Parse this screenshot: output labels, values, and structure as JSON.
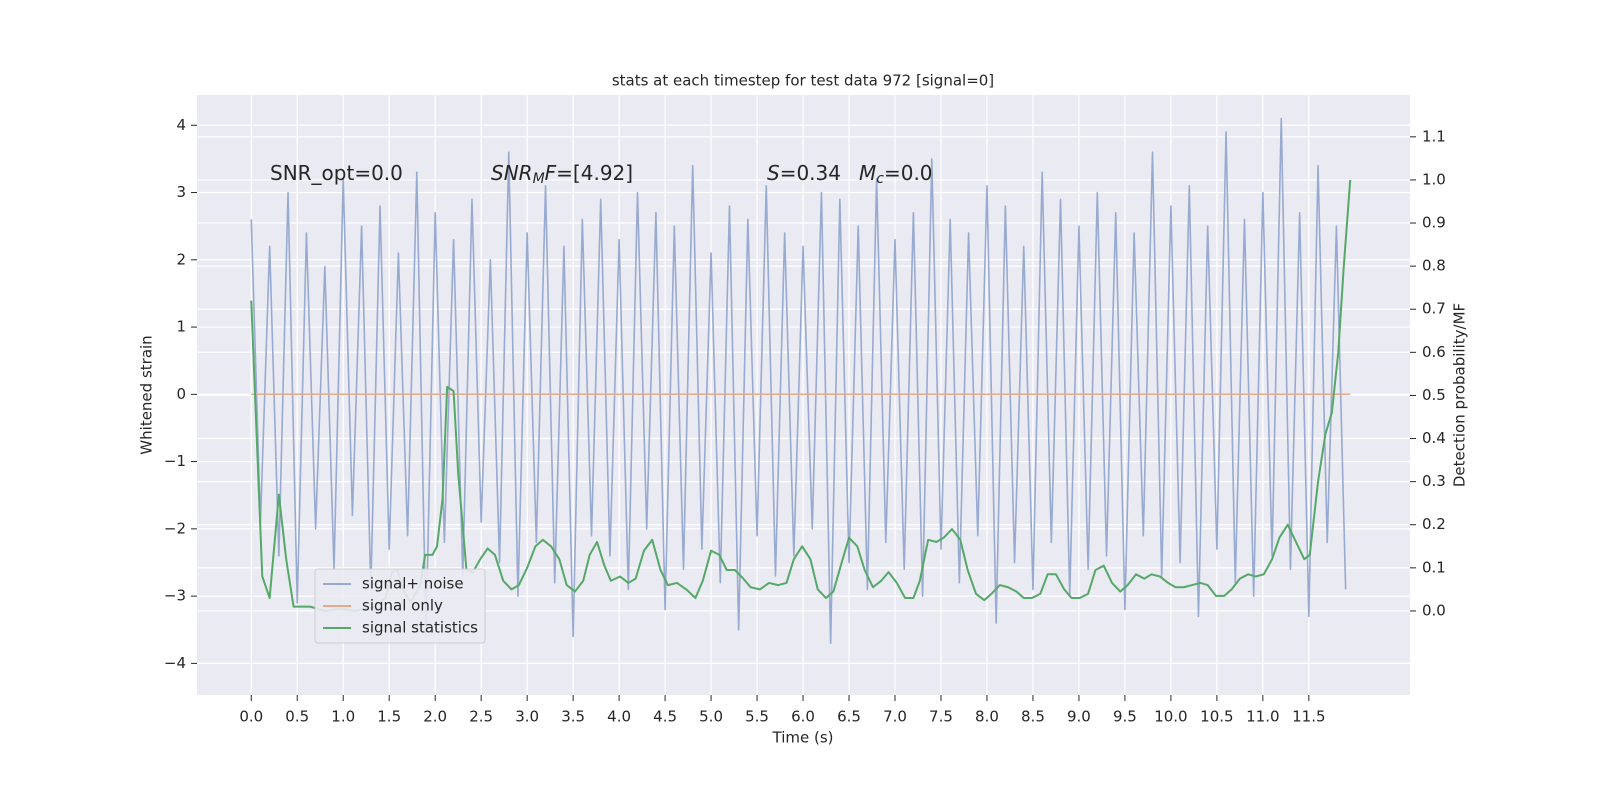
{
  "chart_data": {
    "type": "line",
    "title": "stats at each timestep for test data 972 [signal=0]",
    "xlabel": "Time (s)",
    "ylabel": "Whitened strain",
    "y2label": "Detection probability/MF",
    "annotations": [
      [
        "SNR_opt=0.0"
      ],
      [
        "SNR",
        "M",
        "F",
        "=[4.92]"
      ],
      [
        "S",
        "=0.34"
      ],
      [
        "M",
        "c",
        "=0.0"
      ]
    ],
    "legend": "lower left",
    "grid": true,
    "xlim": [
      -0.59,
      12.6
    ],
    "ylim": [
      -4.47,
      4.45
    ],
    "y2lim": [
      -0.195,
      1.197
    ],
    "xticks": [
      {
        "value": 0,
        "label": "0.0"
      },
      {
        "value": 0.5,
        "label": "0.5"
      },
      {
        "value": 1,
        "label": "1.0"
      },
      {
        "value": 1.5,
        "label": "1.5"
      },
      {
        "value": 2,
        "label": "2.0"
      },
      {
        "value": 2.5,
        "label": "2.5"
      },
      {
        "value": 3,
        "label": "3.0"
      },
      {
        "value": 3.5,
        "label": "3.5"
      },
      {
        "value": 4,
        "label": "4.0"
      },
      {
        "value": 4.5,
        "label": "4.5"
      },
      {
        "value": 5,
        "label": "5.0"
      },
      {
        "value": 5.5,
        "label": "5.5"
      },
      {
        "value": 6,
        "label": "6.0"
      },
      {
        "value": 6.5,
        "label": "6.5"
      },
      {
        "value": 7,
        "label": "7.0"
      },
      {
        "value": 7.5,
        "label": "7.5"
      },
      {
        "value": 8,
        "label": "8.0"
      },
      {
        "value": 8.5,
        "label": "8.5"
      },
      {
        "value": 9,
        "label": "9.0"
      },
      {
        "value": 9.5,
        "label": "9.5"
      },
      {
        "value": 10,
        "label": "10.0"
      },
      {
        "value": 10.5,
        "label": "10.5"
      },
      {
        "value": 11,
        "label": "11.0"
      },
      {
        "value": 11.5,
        "label": "11.5"
      }
    ],
    "yticks": [
      {
        "value": -4,
        "label": "−4"
      },
      {
        "value": -3,
        "label": "−3"
      },
      {
        "value": -2,
        "label": "−2"
      },
      {
        "value": -1,
        "label": "−1"
      },
      0,
      1,
      2,
      3,
      4
    ],
    "y2ticks": [
      {
        "value": 0,
        "label": "0.0"
      },
      {
        "value": 0.1,
        "label": "0.1"
      },
      {
        "value": 0.2,
        "label": "0.2"
      },
      {
        "value": 0.3,
        "label": "0.3"
      },
      {
        "value": 0.4,
        "label": "0.4"
      },
      {
        "value": 0.5,
        "label": "0.5"
      },
      {
        "value": 0.6,
        "label": "0.6"
      },
      {
        "value": 0.7,
        "label": "0.7"
      },
      {
        "value": 0.8,
        "label": "0.8"
      },
      {
        "value": 0.9,
        "label": "0.9"
      },
      {
        "value": 1,
        "label": "1.0"
      },
      {
        "value": 1.1,
        "label": "1.1"
      }
    ],
    "series": [
      {
        "name": "signal+ noise",
        "color": "#98aad0",
        "x": [
          0,
          0.1,
          0.2,
          0.3,
          0.4,
          0.5,
          0.6,
          0.7,
          0.8,
          0.9,
          1,
          1.1,
          1.2,
          1.3,
          1.4,
          1.5,
          1.6,
          1.7,
          1.8,
          1.9,
          2,
          2.1,
          2.2,
          2.3,
          2.4,
          2.5,
          2.6,
          2.7,
          2.8,
          2.9,
          3,
          3.1,
          3.2,
          3.3,
          3.4,
          3.5,
          3.6,
          3.7,
          3.8,
          3.9,
          4,
          4.1,
          4.2,
          4.3,
          4.4,
          4.5,
          4.6,
          4.7,
          4.8,
          4.9,
          5,
          5.1,
          5.2,
          5.3,
          5.4,
          5.5,
          5.6,
          5.7,
          5.8,
          5.9,
          6,
          6.1,
          6.2,
          6.3,
          6.4,
          6.5,
          6.6,
          6.7,
          6.8,
          6.9,
          7,
          7.1,
          7.2,
          7.3,
          7.4,
          7.5,
          7.6,
          7.7,
          7.8,
          7.9,
          8,
          8.1,
          8.2,
          8.3,
          8.4,
          8.5,
          8.6,
          8.7,
          8.8,
          8.9,
          9,
          9.1,
          9.2,
          9.3,
          9.4,
          9.5,
          9.6,
          9.7,
          9.8,
          9.9,
          10,
          10.1,
          10.2,
          10.3,
          10.4,
          10.5,
          10.6,
          10.7,
          10.8,
          10.9,
          11,
          11.1,
          11.2,
          11.3,
          11.4,
          11.5,
          11.6,
          11.7,
          11.8,
          11.9
        ],
        "values": [
          2.6,
          -1.9,
          2.2,
          -2.4,
          3.0,
          -3.1,
          2.4,
          -2.0,
          1.9,
          -2.6,
          3.2,
          -1.8,
          2.5,
          -2.9,
          2.8,
          -2.3,
          2.1,
          -2.1,
          3.3,
          -3.6,
          2.7,
          -2.2,
          2.3,
          -2.7,
          2.9,
          -1.9,
          2.0,
          -2.5,
          3.6,
          -3.0,
          2.4,
          -2.2,
          3.1,
          -2.8,
          2.2,
          -3.6,
          2.6,
          -2.1,
          2.9,
          -2.4,
          2.3,
          -2.9,
          3.0,
          -2.0,
          2.7,
          -3.2,
          2.5,
          -2.6,
          3.4,
          -2.3,
          2.1,
          -2.8,
          2.8,
          -3.5,
          2.6,
          -2.1,
          3.1,
          -2.7,
          2.4,
          -2.4,
          2.2,
          -2.0,
          3.0,
          -3.7,
          2.9,
          -2.5,
          2.5,
          -2.9,
          3.2,
          -2.2,
          2.3,
          -2.6,
          2.7,
          -3.0,
          3.5,
          -2.3,
          2.6,
          -2.8,
          2.4,
          -2.1,
          3.1,
          -3.4,
          2.8,
          -2.5,
          2.2,
          -2.9,
          3.3,
          -2.2,
          2.9,
          -3.0,
          2.5,
          -2.6,
          3.0,
          -2.4,
          2.7,
          -3.2,
          2.4,
          -2.1,
          3.6,
          -2.7,
          2.8,
          -2.5,
          3.1,
          -3.3,
          2.5,
          -2.3,
          3.9,
          -2.8,
          2.6,
          -3.0,
          3.0,
          -2.4,
          4.1,
          -2.6,
          2.7,
          -3.3,
          3.4,
          -2.2,
          2.5,
          -2.9
        ]
      },
      {
        "name": "signal only",
        "color": "#e8a889",
        "x": [
          0,
          11.95
        ],
        "values": [
          0,
          0
        ]
      },
      {
        "name": "signal statistics",
        "color": "#55a868",
        "axis": "y2",
        "x": [
          0,
          0.12,
          0.2,
          0.3,
          0.38,
          0.46,
          0.64,
          0.8,
          0.97,
          1.13,
          1.35,
          1.46,
          1.53,
          1.59,
          1.65,
          1.73,
          1.84,
          1.89,
          1.97,
          2.02,
          2.08,
          2.13,
          2.2,
          2.25,
          2.34,
          2.41,
          2.49,
          2.57,
          2.65,
          2.74,
          2.83,
          2.91,
          3.0,
          3.09,
          3.17,
          3.26,
          3.35,
          3.43,
          3.52,
          3.61,
          3.68,
          3.76,
          3.84,
          3.91,
          4.01,
          4.1,
          4.18,
          4.27,
          4.36,
          4.45,
          4.53,
          4.63,
          4.73,
          4.83,
          4.91,
          5.0,
          5.09,
          5.17,
          5.26,
          5.35,
          5.43,
          5.53,
          5.63,
          5.73,
          5.82,
          5.9,
          5.99,
          6.08,
          6.16,
          6.25,
          6.33,
          6.41,
          6.5,
          6.59,
          6.67,
          6.76,
          6.85,
          6.93,
          7.02,
          7.11,
          7.2,
          7.27,
          7.36,
          7.45,
          7.53,
          7.62,
          7.71,
          7.79,
          7.88,
          7.97,
          8.05,
          8.14,
          8.23,
          8.32,
          8.4,
          8.49,
          8.58,
          8.66,
          8.75,
          8.84,
          8.92,
          9.01,
          9.1,
          9.18,
          9.27,
          9.36,
          9.45,
          9.53,
          9.62,
          9.71,
          9.79,
          9.88,
          9.97,
          10.05,
          10.14,
          10.23,
          10.32,
          10.4,
          10.49,
          10.58,
          10.66,
          10.75,
          10.84,
          10.92,
          11.01,
          11.1,
          11.18,
          11.27,
          11.36,
          11.45,
          11.51,
          11.6,
          11.68,
          11.75,
          11.82,
          11.88,
          11.95
        ],
        "values": [
          0.72,
          0.08,
          0.03,
          0.27,
          0.12,
          0.01,
          0.01,
          0.0,
          0.005,
          0.0,
          0.01,
          0.03,
          0.09,
          0.095,
          0.05,
          0.02,
          0.06,
          0.13,
          0.13,
          0.15,
          0.26,
          0.52,
          0.51,
          0.32,
          0.095,
          0.09,
          0.12,
          0.145,
          0.13,
          0.07,
          0.05,
          0.06,
          0.1,
          0.15,
          0.165,
          0.15,
          0.12,
          0.06,
          0.045,
          0.07,
          0.13,
          0.16,
          0.105,
          0.07,
          0.08,
          0.065,
          0.075,
          0.14,
          0.165,
          0.095,
          0.06,
          0.065,
          0.05,
          0.03,
          0.07,
          0.14,
          0.13,
          0.095,
          0.095,
          0.075,
          0.055,
          0.05,
          0.065,
          0.06,
          0.065,
          0.12,
          0.15,
          0.12,
          0.05,
          0.03,
          0.045,
          0.105,
          0.17,
          0.15,
          0.095,
          0.055,
          0.07,
          0.09,
          0.065,
          0.03,
          0.03,
          0.07,
          0.165,
          0.16,
          0.17,
          0.19,
          0.165,
          0.095,
          0.04,
          0.025,
          0.04,
          0.06,
          0.055,
          0.045,
          0.03,
          0.03,
          0.04,
          0.085,
          0.085,
          0.05,
          0.03,
          0.03,
          0.04,
          0.095,
          0.105,
          0.065,
          0.045,
          0.06,
          0.085,
          0.075,
          0.085,
          0.08,
          0.065,
          0.055,
          0.055,
          0.06,
          0.065,
          0.06,
          0.035,
          0.035,
          0.05,
          0.075,
          0.085,
          0.08,
          0.085,
          0.12,
          0.17,
          0.2,
          0.16,
          0.12,
          0.13,
          0.3,
          0.41,
          0.46,
          0.6,
          0.8,
          1.0
        ]
      }
    ]
  }
}
